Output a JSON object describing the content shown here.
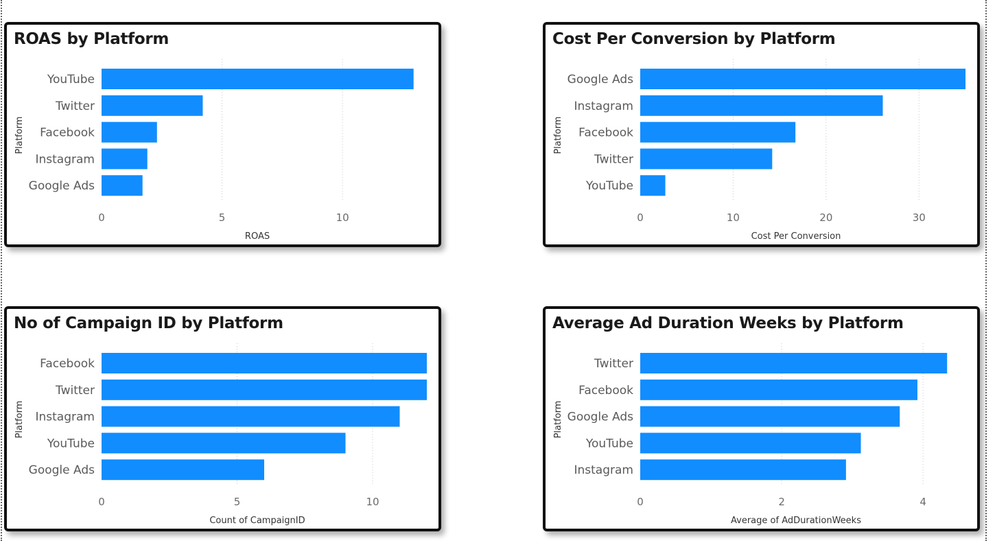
{
  "chart_data": [
    {
      "type": "bar",
      "orientation": "horizontal",
      "title": "ROAS by Platform",
      "ylabel": "Platform",
      "xlabel": "ROAS",
      "categories": [
        "YouTube",
        "Twitter",
        "Facebook",
        "Instagram",
        "Google Ads"
      ],
      "values": [
        12.95,
        4.2,
        2.3,
        1.9,
        1.7
      ],
      "xlim": [
        0,
        13.5
      ],
      "xticks": [
        0,
        5,
        10
      ],
      "grid": true,
      "color": "#118DFF"
    },
    {
      "type": "bar",
      "orientation": "horizontal",
      "title": "Cost Per Conversion by Platform",
      "ylabel": "Platform",
      "xlabel": "Cost Per Conversion",
      "categories": [
        "Google Ads",
        "Instagram",
        "Facebook",
        "Twitter",
        "YouTube"
      ],
      "values": [
        35.0,
        26.1,
        16.7,
        14.2,
        2.7
      ],
      "xlim": [
        0,
        35
      ],
      "xticks": [
        0,
        10,
        20,
        30
      ],
      "grid": true,
      "color": "#118DFF"
    },
    {
      "type": "bar",
      "orientation": "horizontal",
      "title": "No of Campaign ID by Platform",
      "ylabel": "Platform",
      "xlabel": "Count of CampaignID",
      "categories": [
        "Facebook",
        "Twitter",
        "Instagram",
        "YouTube",
        "Google Ads"
      ],
      "values": [
        12,
        12,
        11,
        9,
        6
      ],
      "xlim": [
        0,
        12
      ],
      "xticks": [
        0,
        5,
        10
      ],
      "grid": true,
      "color": "#118DFF"
    },
    {
      "type": "bar",
      "orientation": "horizontal",
      "title": "Average Ad Duration Weeks by Platform",
      "ylabel": "Platform",
      "xlabel": "Average of AdDurationWeeks",
      "categories": [
        "Twitter",
        "Facebook",
        "Google Ads",
        "YouTube",
        "Instagram"
      ],
      "values": [
        4.34,
        3.92,
        3.67,
        3.12,
        2.91
      ],
      "xlim": [
        0,
        4.6
      ],
      "xticks": [
        0,
        2,
        4
      ],
      "grid": true,
      "color": "#118DFF"
    }
  ]
}
